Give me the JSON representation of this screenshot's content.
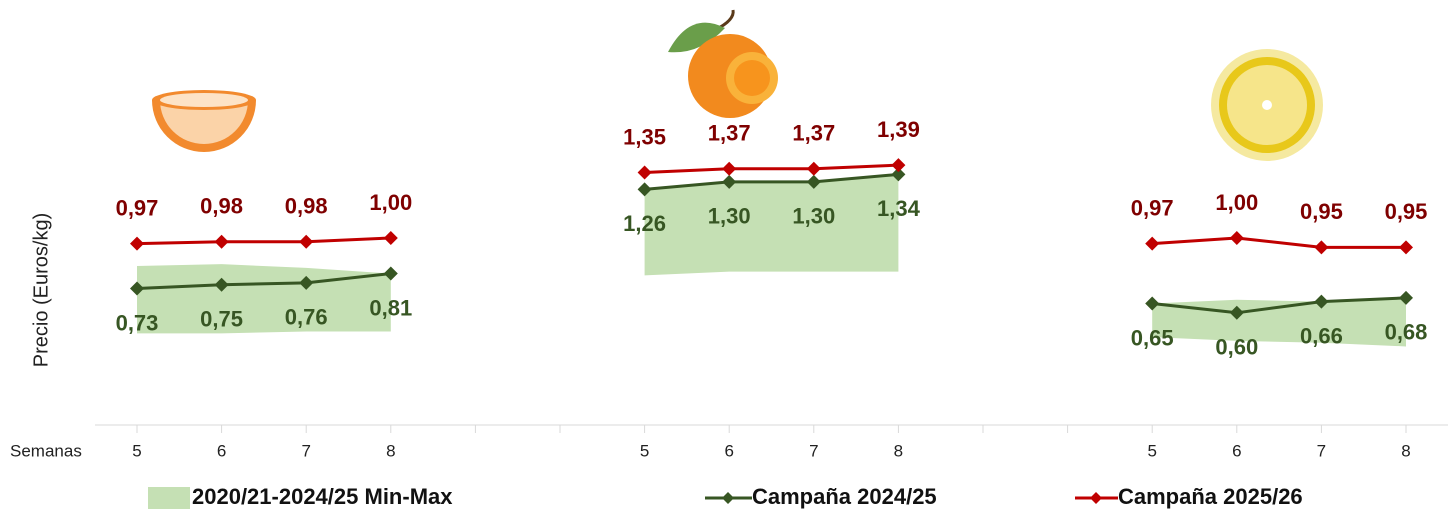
{
  "chart_data": {
    "type": "line",
    "y_label": "Precio (Euros/kg)",
    "x_label": "Semanas",
    "categories": [
      "5",
      "6",
      "7",
      "8",
      null,
      null,
      "5",
      "6",
      "7",
      "8",
      null,
      null,
      "5",
      "6",
      "7",
      "8"
    ],
    "ylim": [
      0,
      2
    ],
    "band": {
      "name": "2020/21-2024/25 Min-Max",
      "color": "#c5e0b4",
      "lower": [
        0.49,
        0.49,
        0.5,
        0.5,
        null,
        null,
        0.8,
        0.82,
        0.82,
        0.82,
        null,
        null,
        0.47,
        0.45,
        0.44,
        0.42
      ],
      "upper": [
        0.85,
        0.86,
        0.84,
        0.81,
        null,
        null,
        1.26,
        1.3,
        1.3,
        1.34,
        null,
        null,
        0.65,
        0.67,
        0.66,
        0.68
      ]
    },
    "series": [
      {
        "name": "Campaña 2024/25",
        "color": "#375623",
        "label_color": "#375623",
        "values": [
          0.73,
          0.75,
          0.76,
          0.81,
          null,
          null,
          1.26,
          1.3,
          1.3,
          1.34,
          null,
          null,
          0.65,
          0.6,
          0.66,
          0.68
        ],
        "value_labels": [
          "0,73",
          "0,75",
          "0,76",
          "0,81",
          null,
          null,
          "1,26",
          "1,30",
          "1,30",
          "1,34",
          null,
          null,
          "0,65",
          "0,60",
          "0,66",
          "0,68"
        ]
      },
      {
        "name": "Campaña 2025/26",
        "color": "#c00000",
        "label_color": "#7f0000",
        "values": [
          0.97,
          0.98,
          0.98,
          1.0,
          null,
          null,
          1.35,
          1.37,
          1.37,
          1.39,
          null,
          null,
          0.97,
          1.0,
          0.95,
          0.95
        ],
        "value_labels": [
          "0,97",
          "0,98",
          "0,98",
          "1,00",
          null,
          null,
          "1,35",
          "1,37",
          "1,37",
          "1,39",
          null,
          null,
          "0,97",
          "1,00",
          "0,95",
          "0,95"
        ]
      }
    ]
  }
}
